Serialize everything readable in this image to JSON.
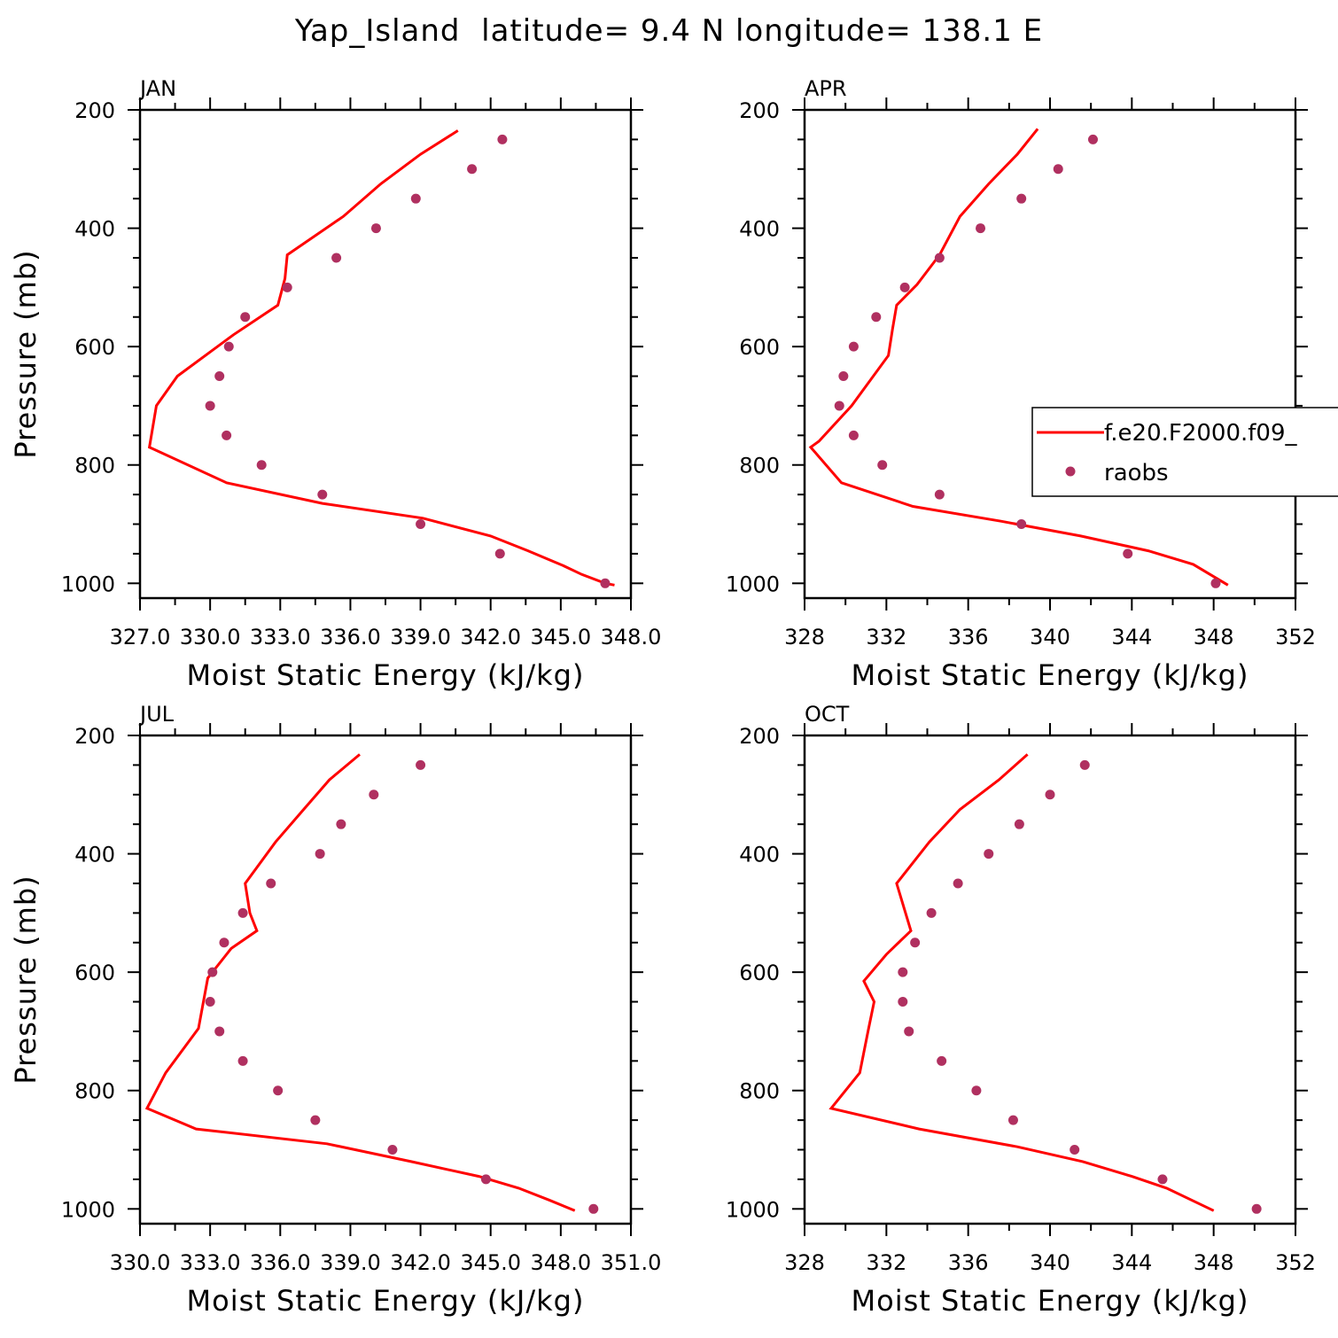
{
  "figure": {
    "title": "Yap_Island  latitude= 9.4 N longitude= 138.1 E"
  },
  "colors": {
    "model": "#ff0000",
    "raobs": "#b03060",
    "axes": "#000000"
  },
  "legend": {
    "placement": "right, overlapping APR panel",
    "entries": [
      "f.e20.F2000.f09_",
      "raobs"
    ]
  },
  "chart_data": [
    {
      "type": "line",
      "panel": "JAN",
      "xlabel": "Moist Static Energy (kJ/kg)",
      "ylabel": "Pressure (mb)",
      "xlim": [
        327,
        348
      ],
      "ylim": [
        200,
        1025
      ],
      "y_reversed": true,
      "x_ticklabels": [
        "327.0",
        "330.0",
        "333.0",
        "336.0",
        "339.0",
        "342.0",
        "345.0",
        "348.0"
      ],
      "x_tick_values": [
        327,
        330,
        333,
        336,
        339,
        342,
        345,
        348
      ],
      "y_ticklabels": [
        "200",
        "400",
        "600",
        "800",
        "1000"
      ],
      "y_tick_values": [
        200,
        400,
        600,
        800,
        1000
      ],
      "series": [
        {
          "name": "f.e20.F2000.f09_",
          "kind": "line",
          "x": [
            340.6,
            339.0,
            337.3,
            335.7,
            333.3,
            333.2,
            332.9,
            331.0,
            328.6,
            327.7,
            327.4,
            330.7,
            334.8,
            339.1,
            342.0,
            343.6,
            345.1,
            345.9,
            346.9,
            347.3
          ],
          "y": [
            235,
            275,
            325,
            380,
            445,
            485,
            530,
            580,
            650,
            700,
            770,
            830,
            865,
            890,
            920,
            945,
            970,
            985,
            1000,
            1003
          ]
        },
        {
          "name": "raobs",
          "kind": "points",
          "x": [
            342.5,
            341.2,
            338.8,
            337.1,
            335.4,
            333.3,
            331.5,
            330.8,
            330.4,
            330.0,
            330.7,
            332.2,
            334.8,
            339.0,
            342.4,
            346.9
          ],
          "y": [
            250,
            300,
            350,
            400,
            450,
            500,
            550,
            600,
            650,
            700,
            750,
            800,
            850,
            900,
            950,
            1000
          ]
        }
      ]
    },
    {
      "type": "line",
      "panel": "APR",
      "xlabel": "Moist Static Energy (kJ/kg)",
      "ylabel": "",
      "xlim": [
        328,
        352
      ],
      "ylim": [
        200,
        1025
      ],
      "y_reversed": true,
      "x_ticklabels": [
        "328",
        "332",
        "336",
        "340",
        "344",
        "348",
        "352"
      ],
      "x_tick_values": [
        328,
        332,
        336,
        340,
        344,
        348,
        352
      ],
      "y_ticklabels": [
        "200",
        "400",
        "600",
        "800",
        "1000"
      ],
      "y_tick_values": [
        200,
        400,
        600,
        800,
        1000
      ],
      "series": [
        {
          "name": "f.e20.F2000.f09_",
          "kind": "line",
          "x": [
            339.4,
            338.4,
            337.0,
            335.6,
            334.6,
            333.5,
            332.5,
            332.3,
            332.1,
            330.3,
            328.7,
            328.3,
            329.8,
            333.3,
            337.6,
            341.5,
            344.8,
            347.0,
            348.7
          ],
          "y": [
            232,
            275,
            325,
            380,
            445,
            495,
            530,
            570,
            615,
            700,
            760,
            770,
            830,
            870,
            895,
            920,
            945,
            968,
            1003
          ]
        },
        {
          "name": "raobs",
          "kind": "points",
          "x": [
            342.1,
            340.4,
            338.6,
            336.6,
            334.6,
            332.9,
            331.5,
            330.4,
            329.9,
            329.7,
            330.4,
            331.8,
            334.6,
            338.6,
            343.8,
            348.1
          ],
          "y": [
            250,
            300,
            350,
            400,
            450,
            500,
            550,
            600,
            650,
            700,
            750,
            800,
            850,
            900,
            950,
            1000
          ]
        }
      ]
    },
    {
      "type": "line",
      "panel": "JUL",
      "xlabel": "Moist Static Energy (kJ/kg)",
      "ylabel": "Pressure (mb)",
      "xlim": [
        330,
        351
      ],
      "ylim": [
        200,
        1025
      ],
      "y_reversed": true,
      "x_ticklabels": [
        "330.0",
        "333.0",
        "336.0",
        "339.0",
        "342.0",
        "345.0",
        "348.0",
        "351.0"
      ],
      "x_tick_values": [
        330,
        333,
        336,
        339,
        342,
        345,
        348,
        351
      ],
      "y_ticklabels": [
        "200",
        "400",
        "600",
        "800",
        "1000"
      ],
      "y_tick_values": [
        200,
        400,
        600,
        800,
        1000
      ],
      "series": [
        {
          "name": "f.e20.F2000.f09_",
          "kind": "line",
          "x": [
            339.4,
            338.1,
            337.0,
            335.8,
            334.5,
            334.7,
            335.0,
            333.9,
            332.9,
            332.5,
            331.1,
            330.3,
            332.4,
            338.0,
            341.6,
            344.5,
            346.2,
            347.5,
            348.6
          ],
          "y": [
            232,
            275,
            325,
            380,
            450,
            500,
            530,
            560,
            610,
            695,
            770,
            830,
            865,
            890,
            920,
            945,
            965,
            985,
            1003
          ]
        },
        {
          "name": "raobs",
          "kind": "points",
          "x": [
            342.0,
            340.0,
            338.6,
            337.7,
            335.6,
            334.4,
            333.6,
            333.1,
            333.0,
            333.4,
            334.4,
            335.9,
            337.5,
            340.8,
            344.8,
            349.4
          ],
          "y": [
            250,
            300,
            350,
            400,
            450,
            500,
            550,
            600,
            650,
            700,
            750,
            800,
            850,
            900,
            950,
            1000
          ]
        }
      ]
    },
    {
      "type": "line",
      "panel": "OCT",
      "xlabel": "Moist Static Energy (kJ/kg)",
      "ylabel": "",
      "xlim": [
        328,
        352
      ],
      "ylim": [
        200,
        1025
      ],
      "y_reversed": true,
      "x_ticklabels": [
        "328",
        "332",
        "336",
        "340",
        "344",
        "348",
        "352"
      ],
      "x_tick_values": [
        328,
        332,
        336,
        340,
        344,
        348,
        352
      ],
      "y_ticklabels": [
        "200",
        "400",
        "600",
        "800",
        "1000"
      ],
      "y_tick_values": [
        200,
        400,
        600,
        800,
        1000
      ],
      "series": [
        {
          "name": "f.e20.F2000.f09_",
          "kind": "line",
          "x": [
            338.9,
            337.5,
            335.6,
            334.1,
            332.5,
            333.2,
            332.0,
            330.9,
            331.4,
            331.1,
            330.7,
            329.3,
            333.6,
            338.4,
            341.6,
            344.0,
            345.7,
            348.0
          ],
          "y": [
            232,
            275,
            325,
            380,
            450,
            530,
            570,
            615,
            650,
            700,
            770,
            830,
            865,
            895,
            920,
            945,
            965,
            1003
          ]
        },
        {
          "name": "raobs",
          "kind": "points",
          "x": [
            341.7,
            340.0,
            338.5,
            337.0,
            335.5,
            334.2,
            333.4,
            332.8,
            332.8,
            333.1,
            334.7,
            336.4,
            338.2,
            341.2,
            345.5,
            350.1
          ],
          "y": [
            250,
            300,
            350,
            400,
            450,
            500,
            550,
            600,
            650,
            700,
            750,
            800,
            850,
            900,
            950,
            1000
          ]
        }
      ]
    }
  ]
}
